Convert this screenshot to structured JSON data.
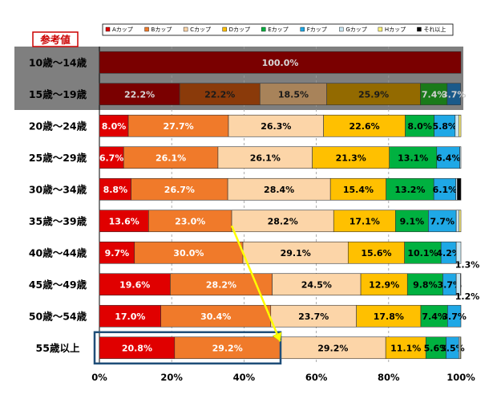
{
  "reference_label": "参考値",
  "chart_data": {
    "type": "bar",
    "orientation": "horizontal",
    "stacked": true,
    "percent_stacked": true,
    "categories": [
      "10歳～14歳",
      "15歳～19歳",
      "20歳～24歳",
      "25歳～29歳",
      "30歳～34歳",
      "35歳～39歳",
      "40歳～44歳",
      "45歳～49歳",
      "50歳～54歳",
      "55歳以上"
    ],
    "series": [
      {
        "name": "Aカップ",
        "color": "#e00000",
        "values": [
          100.0,
          22.2,
          8.0,
          6.7,
          8.8,
          13.6,
          9.7,
          19.6,
          17.0,
          20.8
        ]
      },
      {
        "name": "Bカップ",
        "color": "#f07a2a",
        "values": [
          0,
          22.2,
          27.7,
          26.1,
          26.7,
          23.0,
          30.0,
          28.2,
          30.4,
          29.2
        ]
      },
      {
        "name": "Cカップ",
        "color": "#fcd5a8",
        "values": [
          0,
          18.5,
          26.3,
          26.1,
          28.4,
          28.2,
          29.1,
          24.5,
          23.7,
          29.2
        ]
      },
      {
        "name": "Dカップ",
        "color": "#ffc000",
        "values": [
          0,
          25.9,
          22.6,
          21.3,
          15.4,
          17.1,
          15.6,
          12.9,
          17.8,
          11.1
        ]
      },
      {
        "name": "Eカップ",
        "color": "#00b140",
        "values": [
          0,
          7.4,
          8.0,
          13.1,
          13.2,
          9.1,
          10.1,
          9.8,
          7.4,
          5.6
        ]
      },
      {
        "name": "Fカップ",
        "color": "#1fa8e6",
        "values": [
          0,
          3.7,
          5.8,
          6.4,
          6.1,
          7.7,
          4.2,
          3.7,
          3.7,
          3.5
        ]
      },
      {
        "name": "Gカップ",
        "color": "#c9e6f2",
        "values": [
          0,
          0,
          1.0,
          0.3,
          0.4,
          0.8,
          1.3,
          1.2,
          0,
          0.4
        ]
      },
      {
        "name": "Hカップ",
        "color": "#fff27a",
        "values": [
          0,
          0,
          0.6,
          0,
          0,
          0.5,
          0,
          0.1,
          0,
          0.2
        ]
      },
      {
        "name": "それ以上",
        "color": "#000000",
        "values": [
          0,
          0,
          0,
          0,
          1.0,
          0,
          0,
          0,
          0,
          0
        ]
      }
    ],
    "data_labels": [
      [
        "100.0%",
        "",
        "",
        "",
        "",
        "",
        "",
        "",
        ""
      ],
      [
        "22.2%",
        "22.2%",
        "18.5%",
        "25.9%",
        "7.4%",
        "3.7%",
        "",
        "",
        ""
      ],
      [
        "8.0%",
        "27.7%",
        "26.3%",
        "22.6%",
        "8.0%",
        "5.8%",
        "",
        "",
        ""
      ],
      [
        "6.7%",
        "26.1%",
        "26.1%",
        "21.3%",
        "13.1%",
        "6.4%",
        "",
        "",
        ""
      ],
      [
        "8.8%",
        "26.7%",
        "28.4%",
        "15.4%",
        "13.2%",
        "6.1%",
        "",
        "",
        ""
      ],
      [
        "13.6%",
        "23.0%",
        "28.2%",
        "17.1%",
        "9.1%",
        "7.7%",
        "",
        "",
        ""
      ],
      [
        "9.7%",
        "30.0%",
        "29.1%",
        "15.6%",
        "10.1%",
        "4.2%",
        "",
        "",
        ""
      ],
      [
        "19.6%",
        "28.2%",
        "24.5%",
        "12.9%",
        "9.8%",
        "3.7%",
        "",
        "",
        ""
      ],
      [
        "17.0%",
        "30.4%",
        "23.7%",
        "17.8%",
        "7.4%",
        "3.7%",
        "",
        "",
        ""
      ],
      [
        "20.8%",
        "29.2%",
        "29.2%",
        "11.1%",
        "5.6%",
        "3.5%",
        "",
        "",
        ""
      ]
    ],
    "outside_labels": [
      {
        "row": 6,
        "text": "1.3%"
      },
      {
        "row": 7,
        "text": "1.2%"
      }
    ],
    "xlim": [
      0,
      100
    ],
    "x_ticks": [
      "0%",
      "20%",
      "40%",
      "60%",
      "80%",
      "100%"
    ],
    "legend_position": "top",
    "reference_rows": [
      0,
      1
    ],
    "highlighted_row": 9,
    "arrow": {
      "from_row": 5,
      "from_value": 36.6,
      "to_row": 9,
      "to_value": 50.0
    }
  }
}
